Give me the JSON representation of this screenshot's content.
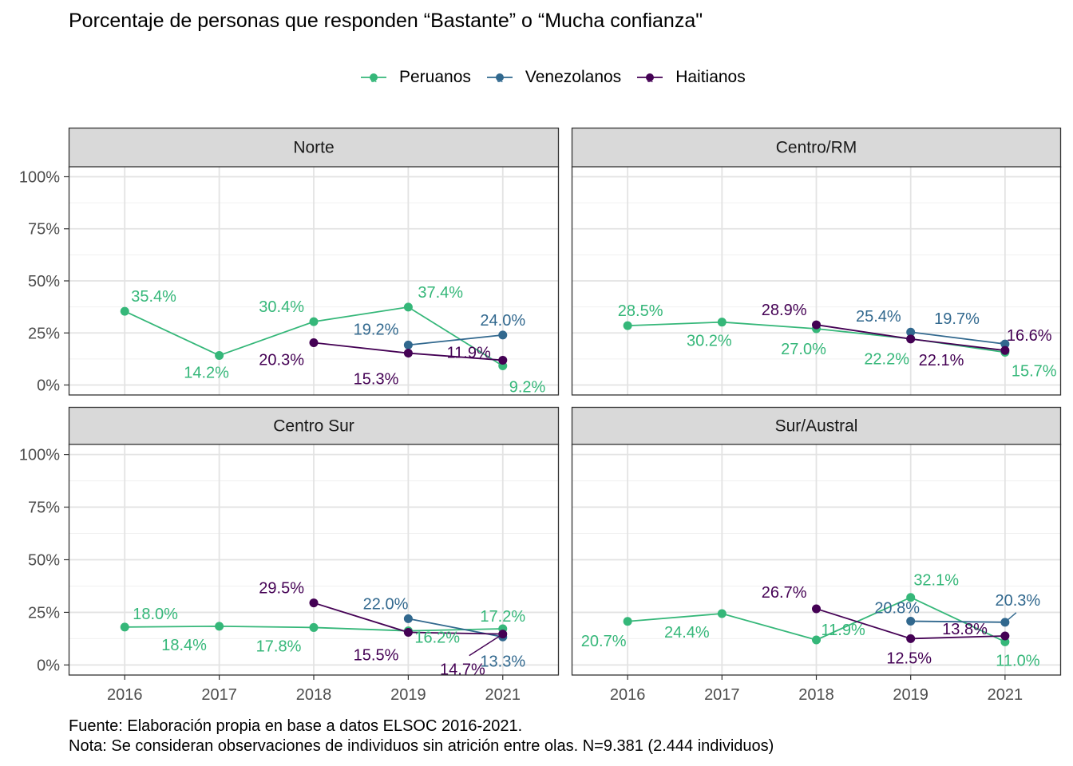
{
  "chart_data": {
    "type": "line",
    "title": "Porcentaje de personas que responden “Bastante” o “Mucha confianza\"",
    "xlabel": "",
    "ylabel": "",
    "x": [
      2016,
      2017,
      2018,
      2019,
      2021
    ],
    "x_tick_labels": [
      "2016",
      "2017",
      "2018",
      "2019",
      "2021"
    ],
    "ylim": [
      0,
      100
    ],
    "y_ticks": [
      "0%",
      "25%",
      "50%",
      "75%",
      "100%"
    ],
    "grid": true,
    "legend_position": "top",
    "legend": [
      {
        "name": "Peruanos",
        "color": "#35b779"
      },
      {
        "name": "Venezolanos",
        "color": "#31688e"
      },
      {
        "name": "Haitianos",
        "color": "#440154"
      }
    ],
    "panels": [
      {
        "name": "Norte",
        "series": [
          {
            "name": "Peruanos",
            "points": [
              [
                2016,
                35.4
              ],
              [
                2017,
                14.2
              ],
              [
                2018,
                30.4
              ],
              [
                2019,
                37.4
              ],
              [
                2021,
                9.2
              ]
            ],
            "labels": [
              "35.4%",
              "14.2%",
              "30.4%",
              "37.4%",
              "9.2%"
            ]
          },
          {
            "name": "Venezolanos",
            "points": [
              [
                2019,
                19.2
              ],
              [
                2021,
                24.0
              ]
            ],
            "labels": [
              "19.2%",
              "24.0%"
            ]
          },
          {
            "name": "Haitianos",
            "points": [
              [
                2018,
                20.3
              ],
              [
                2019,
                15.3
              ],
              [
                2021,
                11.9
              ]
            ],
            "labels": [
              "20.3%",
              "15.3%",
              "11.9%"
            ]
          }
        ]
      },
      {
        "name": "Centro/RM",
        "series": [
          {
            "name": "Peruanos",
            "points": [
              [
                2016,
                28.5
              ],
              [
                2017,
                30.2
              ],
              [
                2018,
                27.0
              ],
              [
                2019,
                22.2
              ],
              [
                2021,
                15.7
              ]
            ],
            "labels": [
              "28.5%",
              "30.2%",
              "27.0%",
              "22.2%",
              "15.7%"
            ]
          },
          {
            "name": "Venezolanos",
            "points": [
              [
                2019,
                25.4
              ],
              [
                2021,
                19.7
              ]
            ],
            "labels": [
              "25.4%",
              "19.7%"
            ]
          },
          {
            "name": "Haitianos",
            "points": [
              [
                2018,
                28.9
              ],
              [
                2019,
                22.1
              ],
              [
                2021,
                16.6
              ]
            ],
            "labels": [
              "28.9%",
              "22.1%",
              "16.6%"
            ]
          }
        ]
      },
      {
        "name": "Centro Sur",
        "series": [
          {
            "name": "Peruanos",
            "points": [
              [
                2016,
                18.0
              ],
              [
                2017,
                18.4
              ],
              [
                2018,
                17.8
              ],
              [
                2019,
                16.2
              ],
              [
                2021,
                17.2
              ]
            ],
            "labels": [
              "18.0%",
              "18.4%",
              "17.8%",
              "16.2%",
              "17.2%"
            ]
          },
          {
            "name": "Venezolanos",
            "points": [
              [
                2019,
                22.0
              ],
              [
                2021,
                13.3
              ]
            ],
            "labels": [
              "22.0%",
              "13.3%"
            ]
          },
          {
            "name": "Haitianos",
            "points": [
              [
                2018,
                29.5
              ],
              [
                2019,
                15.5
              ],
              [
                2021,
                14.7
              ]
            ],
            "labels": [
              "29.5%",
              "15.5%",
              "14.7%"
            ]
          }
        ]
      },
      {
        "name": "Sur/Austral",
        "series": [
          {
            "name": "Peruanos",
            "points": [
              [
                2016,
                20.7
              ],
              [
                2017,
                24.4
              ],
              [
                2018,
                11.9
              ],
              [
                2019,
                32.1
              ],
              [
                2021,
                11.0
              ]
            ],
            "labels": [
              "20.7%",
              "24.4%",
              "11.9%",
              "32.1%",
              "11.0%"
            ]
          },
          {
            "name": "Venezolanos",
            "points": [
              [
                2019,
                20.8
              ],
              [
                2021,
                20.3
              ]
            ],
            "labels": [
              "20.8%",
              "20.3%"
            ]
          },
          {
            "name": "Haitianos",
            "points": [
              [
                2018,
                26.7
              ],
              [
                2019,
                12.5
              ],
              [
                2021,
                13.8
              ]
            ],
            "labels": [
              "26.7%",
              "12.5%",
              "13.8%"
            ]
          }
        ]
      }
    ]
  },
  "caption": {
    "source": "Fuente: Elaboración propia en base a datos ELSOC 2016-2021.",
    "note": "Nota: Se consideran observaciones de individuos sin atrición entre olas. N=9.381 (2.444 individuos)"
  }
}
